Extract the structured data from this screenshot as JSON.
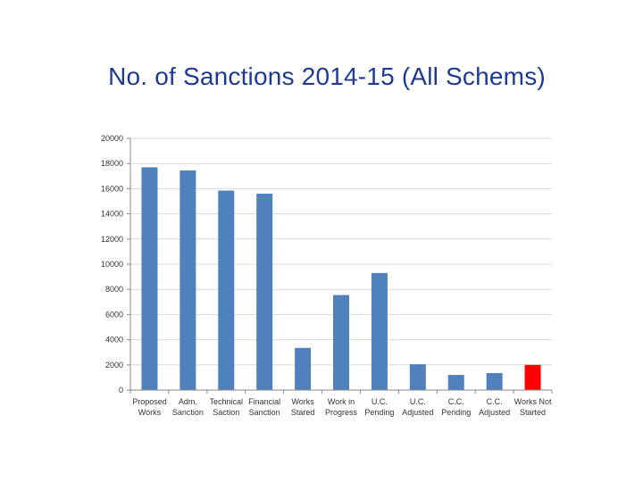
{
  "chart_data": {
    "type": "bar",
    "title": "No. of Sanctions 2014-15 (All Schems)",
    "categories": [
      [
        "Proposed",
        "Works"
      ],
      [
        "Adm.",
        "Sanction"
      ],
      [
        "Technical",
        "Saction"
      ],
      [
        "Financial",
        "Sanction"
      ],
      [
        "Works",
        "Stared"
      ],
      [
        "Work in",
        "Progress"
      ],
      [
        "U.C.",
        "Pending"
      ],
      [
        "U.C.",
        "Adjusted"
      ],
      [
        "C.C.",
        "Pending"
      ],
      [
        "C.C.",
        "Adjusted"
      ],
      [
        "Works Not",
        "Started"
      ]
    ],
    "values": [
      17700,
      17450,
      15850,
      15600,
      3350,
      7550,
      9300,
      2050,
      1200,
      1350,
      2000
    ],
    "colors": [
      "#4f81bd",
      "#4f81bd",
      "#4f81bd",
      "#4f81bd",
      "#4f81bd",
      "#4f81bd",
      "#4f81bd",
      "#4f81bd",
      "#4f81bd",
      "#4f81bd",
      "#ff0000"
    ],
    "ylim": [
      0,
      20000
    ],
    "yticks": [
      "0",
      "2000",
      "4000",
      "6000",
      "8000",
      "10000",
      "12000",
      "14000",
      "16000",
      "18000",
      "20000"
    ],
    "grid": true,
    "legend": "none"
  }
}
